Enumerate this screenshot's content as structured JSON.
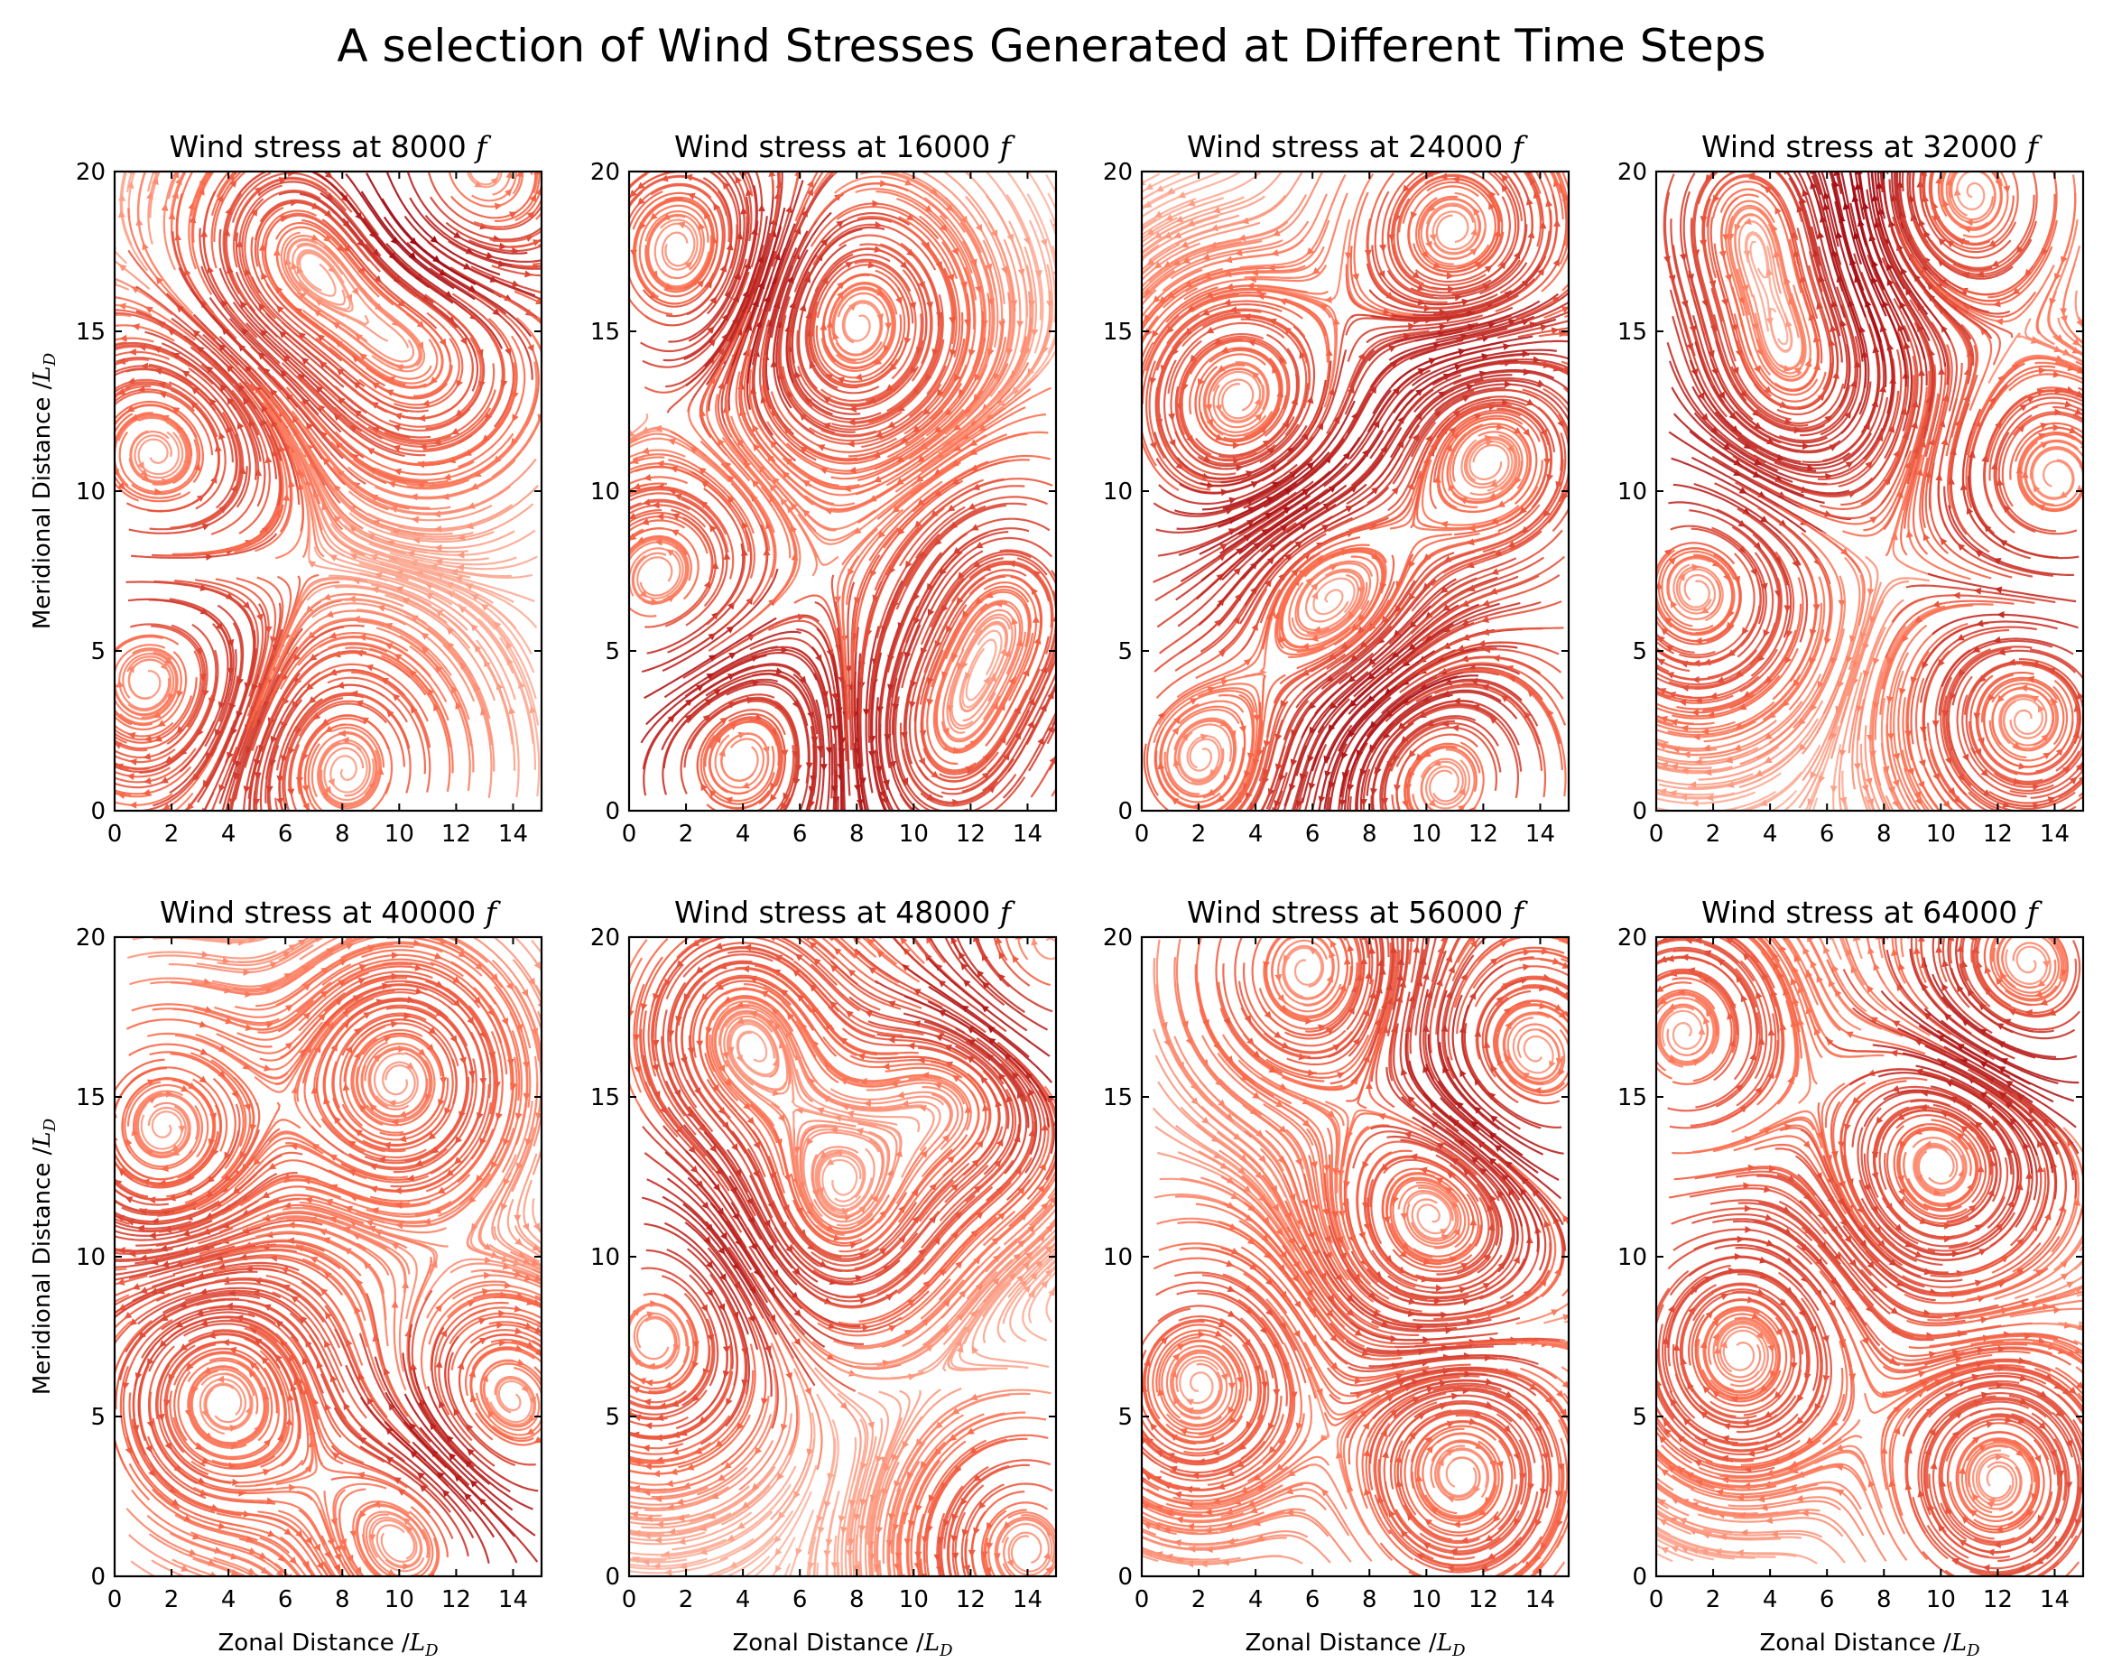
{
  "figure": {
    "title": "A selection of Wind Stresses Generated at Different Time Steps"
  },
  "colormap": {
    "light": "#fee0d2",
    "mid": "#fb6a4a",
    "dark": "#99000d"
  },
  "chart_data": [
    {
      "type": "streamplot",
      "title_prefix": "Wind stress at ",
      "title_value": " 8000",
      "title_unit": "f",
      "xlabel": "",
      "ylabel_text": "Meridional Distance /",
      "ylabel_math": "L",
      "ylabel_sub": "D",
      "xlim": [
        0,
        15
      ],
      "ylim": [
        0,
        20
      ],
      "xticks": [
        0,
        2,
        4,
        6,
        8,
        10,
        12,
        14
      ],
      "yticks": [
        0,
        5,
        10,
        15,
        20
      ],
      "vortices": [
        [
          1.5,
          11,
          1
        ],
        [
          1.3,
          4.2,
          -1
        ],
        [
          8,
          1.3,
          1
        ],
        [
          11,
          14.5,
          -1
        ],
        [
          6.5,
          17.5,
          -1
        ],
        [
          12.5,
          19.5,
          1
        ]
      ]
    },
    {
      "type": "streamplot",
      "title_prefix": "Wind stress at ",
      "title_value": "16000",
      "title_unit": "f",
      "xlabel": "",
      "ylabel_text": "",
      "ylabel_math": "",
      "ylabel_sub": "",
      "xlim": [
        0,
        15
      ],
      "ylim": [
        0,
        20
      ],
      "xticks": [
        0,
        2,
        4,
        6,
        8,
        10,
        12,
        14
      ],
      "yticks": [
        0,
        5,
        10,
        15,
        20
      ],
      "vortices": [
        [
          7.8,
          15.3,
          -1
        ],
        [
          13.5,
          6.5,
          1
        ],
        [
          1.2,
          7,
          1
        ],
        [
          2,
          17.5,
          1
        ],
        [
          4,
          2,
          -1
        ],
        [
          11,
          2,
          1
        ]
      ]
    },
    {
      "type": "streamplot",
      "title_prefix": "Wind stress at ",
      "title_value": "24000",
      "title_unit": "f",
      "xlabel": "",
      "ylabel_text": "",
      "ylabel_math": "",
      "ylabel_sub": "",
      "xlim": [
        0,
        15
      ],
      "ylim": [
        0,
        20
      ],
      "xticks": [
        0,
        2,
        4,
        6,
        8,
        10,
        12,
        14
      ],
      "yticks": [
        0,
        5,
        10,
        15,
        20
      ],
      "vortices": [
        [
          3.5,
          12.7,
          1
        ],
        [
          12.3,
          11.2,
          -1
        ],
        [
          6.7,
          6.7,
          -1
        ],
        [
          10.5,
          1,
          1
        ],
        [
          2,
          1.5,
          -1
        ],
        [
          11,
          18,
          1
        ]
      ]
    },
    {
      "type": "streamplot",
      "title_prefix": "Wind stress at ",
      "title_value": "32000",
      "title_unit": "f",
      "xlabel": "",
      "ylabel_text": "",
      "ylabel_math": "",
      "ylabel_sub": "",
      "xlim": [
        0,
        15
      ],
      "ylim": [
        0,
        20
      ],
      "xticks": [
        0,
        2,
        4,
        6,
        8,
        10,
        12,
        14
      ],
      "yticks": [
        0,
        5,
        10,
        15,
        20
      ],
      "vortices": [
        [
          3.3,
          18.8,
          1
        ],
        [
          11,
          19.3,
          -1
        ],
        [
          14,
          10.3,
          -1
        ],
        [
          4.8,
          13.5,
          1
        ],
        [
          1.5,
          7,
          -1
        ],
        [
          13,
          3,
          1
        ]
      ]
    },
    {
      "type": "streamplot",
      "title_prefix": "Wind stress at ",
      "title_value": "40000",
      "title_unit": "f",
      "xlabel_text": "Zonal Distance /",
      "xlabel_math": "L",
      "xlabel_sub": "D",
      "ylabel_text": "Meridional Distance /",
      "ylabel_math": "L",
      "ylabel_sub": "D",
      "xlim": [
        0,
        15
      ],
      "ylim": [
        0,
        20
      ],
      "xticks": [
        0,
        2,
        4,
        6,
        8,
        10,
        12,
        14
      ],
      "yticks": [
        0,
        5,
        10,
        15,
        20
      ],
      "vortices": [
        [
          1.7,
          14,
          -1
        ],
        [
          3.8,
          5.5,
          1
        ],
        [
          10,
          15.5,
          -1
        ],
        [
          10.5,
          1.5,
          1
        ],
        [
          13.5,
          5,
          -1
        ]
      ]
    },
    {
      "type": "streamplot",
      "title_prefix": "Wind stress at ",
      "title_value": "48000",
      "title_unit": "f",
      "xlabel_text": "Zonal Distance /",
      "xlabel_math": "L",
      "xlabel_sub": "D",
      "ylabel_text": "",
      "ylabel_math": "",
      "ylabel_sub": "",
      "xlim": [
        0,
        15
      ],
      "ylim": [
        0,
        20
      ],
      "xticks": [
        0,
        2,
        4,
        6,
        8,
        10,
        12,
        14
      ],
      "yticks": [
        0,
        5,
        10,
        15,
        20
      ],
      "vortices": [
        [
          7.2,
          11.5,
          1
        ],
        [
          1,
          7.5,
          -1
        ],
        [
          14.3,
          19,
          -1
        ],
        [
          4,
          17,
          1
        ],
        [
          14,
          0.8,
          1
        ],
        [
          12,
          15.5,
          1
        ]
      ]
    },
    {
      "type": "streamplot",
      "title_prefix": "Wind stress at ",
      "title_value": "56000",
      "title_unit": "f",
      "xlabel_text": "Zonal Distance /",
      "xlabel_math": "L",
      "xlabel_sub": "D",
      "ylabel_text": "",
      "ylabel_math": "",
      "ylabel_sub": "",
      "xlim": [
        0,
        15
      ],
      "ylim": [
        0,
        20
      ],
      "xticks": [
        0,
        2,
        4,
        6,
        8,
        10,
        12,
        14
      ],
      "yticks": [
        0,
        5,
        10,
        15,
        20
      ],
      "vortices": [
        [
          5.8,
          19,
          1
        ],
        [
          11.2,
          3.2,
          -1
        ],
        [
          10.5,
          11.6,
          1
        ],
        [
          2,
          6,
          -1
        ],
        [
          13.5,
          16,
          -1
        ]
      ]
    },
    {
      "type": "streamplot",
      "title_prefix": "Wind stress at ",
      "title_value": "64000",
      "title_unit": "f",
      "xlabel_text": "Zonal Distance /",
      "xlabel_math": "L",
      "xlabel_sub": "D",
      "ylabel_text": "",
      "ylabel_math": "",
      "ylabel_sub": "",
      "xlim": [
        0,
        15
      ],
      "ylim": [
        0,
        20
      ],
      "xticks": [
        0,
        2,
        4,
        6,
        8,
        10,
        12,
        14
      ],
      "yticks": [
        0,
        5,
        10,
        15,
        20
      ],
      "vortices": [
        [
          10,
          13,
          1
        ],
        [
          12,
          3,
          -1
        ],
        [
          3,
          7,
          -1
        ],
        [
          1,
          17,
          1
        ],
        [
          13,
          19,
          -1
        ]
      ]
    }
  ]
}
